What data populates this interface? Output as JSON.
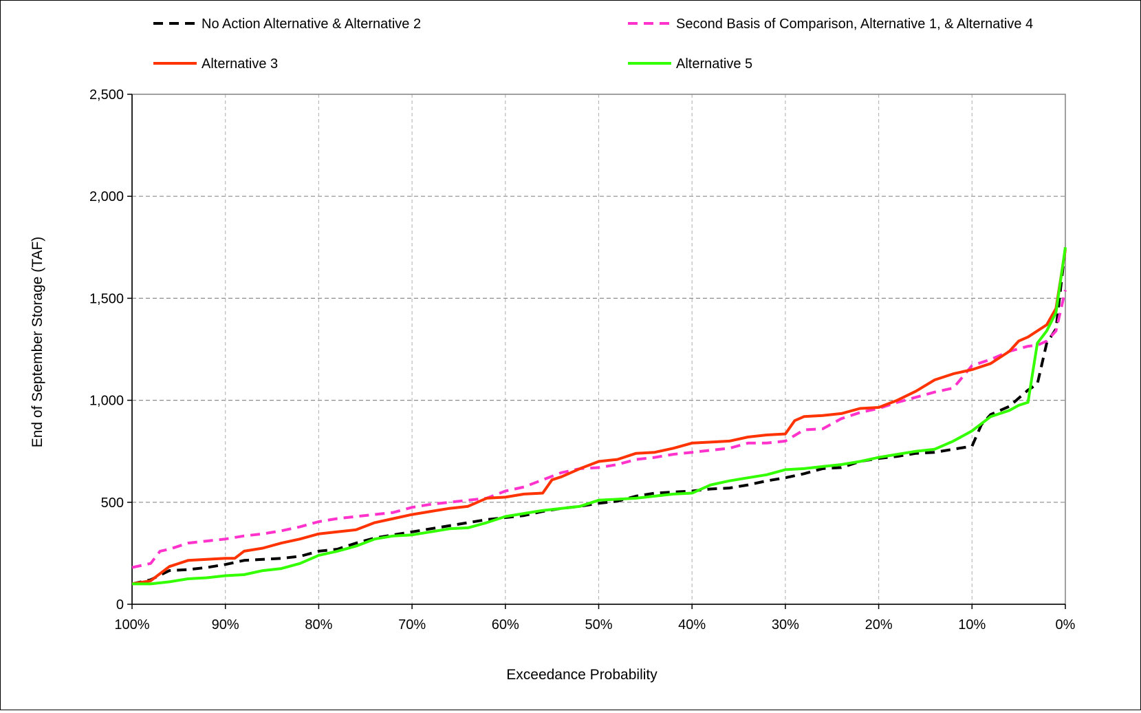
{
  "chart_data": {
    "type": "line",
    "title": "",
    "xlabel": "Exceedance Probability",
    "ylabel": "End of  September Storage (TAF)",
    "xlim": [
      100,
      0
    ],
    "ylim": [
      0,
      2500
    ],
    "x_ticks": [
      "100%",
      "90%",
      "80%",
      "70%",
      "60%",
      "50%",
      "40%",
      "30%",
      "20%",
      "10%",
      "0%"
    ],
    "y_ticks": [
      "0",
      "500",
      "1,000",
      "1,500",
      "2,000",
      "2,500"
    ],
    "grid": true,
    "legend_position": "top",
    "series": [
      {
        "name": "No Action Alternative & Alternative 2",
        "color": "#000000",
        "style": "dashed",
        "x": [
          100,
          98,
          96,
          94,
          92,
          90,
          88,
          86,
          84,
          82,
          80,
          78,
          76,
          74,
          72,
          70,
          68,
          66,
          64,
          62,
          60,
          58,
          56,
          54,
          52,
          50,
          48,
          46,
          44,
          42,
          40,
          38,
          36,
          34,
          32,
          30,
          28,
          26,
          24,
          22,
          20,
          18,
          16,
          14,
          12,
          10,
          9,
          8,
          6,
          5,
          4,
          3,
          2,
          1,
          0
        ],
        "values": [
          100,
          120,
          165,
          170,
          180,
          195,
          215,
          220,
          225,
          235,
          260,
          270,
          300,
          325,
          340,
          355,
          370,
          385,
          400,
          415,
          425,
          435,
          455,
          470,
          480,
          495,
          505,
          530,
          545,
          550,
          555,
          565,
          570,
          585,
          605,
          620,
          640,
          665,
          670,
          700,
          715,
          725,
          740,
          745,
          760,
          775,
          880,
          930,
          970,
          1010,
          1050,
          1080,
          1280,
          1350,
          1750
        ]
      },
      {
        "name": "Second Basis of Comparison, Alternative 1, & Alternative 4",
        "color": "#ff33cc",
        "style": "dashed",
        "x": [
          100,
          98,
          97,
          96,
          94,
          92,
          90,
          88,
          86,
          84,
          82,
          80,
          78,
          76,
          74,
          72,
          70,
          68,
          66,
          64,
          62,
          60,
          58,
          56,
          54,
          52,
          50,
          48,
          46,
          44,
          42,
          40,
          38,
          36,
          34,
          32,
          30,
          28,
          26,
          24,
          22,
          20,
          18,
          16,
          14,
          12,
          10,
          8,
          6,
          4,
          3,
          2,
          1,
          0
        ],
        "values": [
          180,
          200,
          260,
          270,
          300,
          310,
          320,
          335,
          345,
          360,
          380,
          405,
          420,
          430,
          440,
          450,
          475,
          490,
          500,
          510,
          520,
          555,
          575,
          610,
          645,
          665,
          670,
          685,
          710,
          720,
          735,
          745,
          755,
          765,
          790,
          790,
          800,
          855,
          860,
          910,
          940,
          960,
          990,
          1015,
          1040,
          1060,
          1170,
          1200,
          1240,
          1265,
          1270,
          1290,
          1340,
          1540
        ]
      },
      {
        "name": "Alternative 3",
        "color": "#ff3300",
        "style": "solid",
        "x": [
          100,
          98,
          96,
          94,
          92,
          90,
          89,
          88,
          86,
          84,
          82,
          80,
          78,
          76,
          74,
          72,
          70,
          68,
          66,
          64,
          62,
          60,
          58,
          56,
          55,
          54,
          52,
          50,
          48,
          46,
          44,
          42,
          40,
          38,
          36,
          34,
          32,
          30,
          29,
          28,
          26,
          24,
          22,
          20,
          18,
          16,
          14,
          12,
          10,
          8,
          6,
          5,
          4,
          2,
          1,
          0
        ],
        "values": [
          100,
          115,
          185,
          215,
          220,
          225,
          225,
          260,
          275,
          300,
          320,
          345,
          355,
          365,
          400,
          420,
          440,
          455,
          470,
          480,
          520,
          525,
          540,
          545,
          610,
          625,
          665,
          700,
          710,
          740,
          745,
          765,
          790,
          795,
          800,
          820,
          830,
          835,
          900,
          920,
          925,
          935,
          960,
          965,
          1000,
          1045,
          1100,
          1130,
          1150,
          1180,
          1240,
          1290,
          1310,
          1370,
          1450,
          1740
        ]
      },
      {
        "name": "Alternative 5",
        "color": "#33ff00",
        "style": "solid",
        "x": [
          100,
          98,
          96,
          94,
          92,
          90,
          88,
          86,
          84,
          82,
          80,
          78,
          76,
          74,
          72,
          70,
          68,
          66,
          64,
          62,
          60,
          58,
          56,
          54,
          52,
          50,
          48,
          46,
          44,
          42,
          40,
          38,
          36,
          34,
          32,
          30,
          28,
          26,
          24,
          22,
          20,
          18,
          16,
          14,
          12,
          10,
          8,
          6,
          5,
          4,
          3,
          2,
          1,
          0
        ],
        "values": [
          100,
          100,
          110,
          125,
          130,
          140,
          145,
          165,
          175,
          200,
          240,
          260,
          285,
          320,
          335,
          340,
          355,
          370,
          375,
          400,
          430,
          445,
          460,
          470,
          480,
          510,
          515,
          520,
          530,
          540,
          545,
          585,
          605,
          620,
          635,
          660,
          665,
          675,
          685,
          700,
          720,
          735,
          750,
          760,
          800,
          850,
          920,
          950,
          975,
          990,
          1280,
          1340,
          1430,
          1750
        ]
      }
    ]
  }
}
